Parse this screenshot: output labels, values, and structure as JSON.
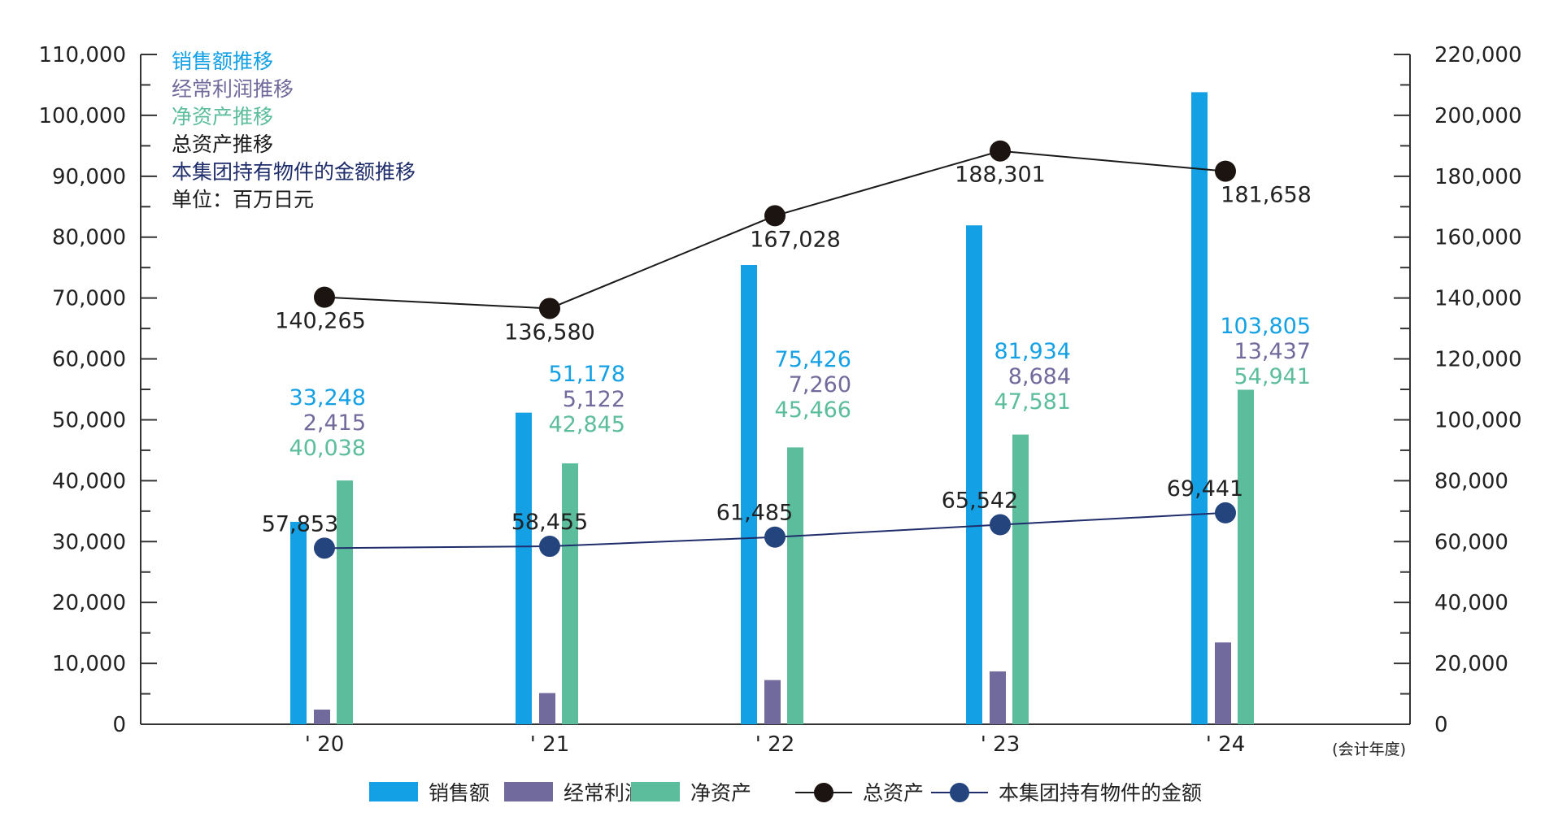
{
  "chart_data": {
    "type": "bar",
    "categories": [
      "' 20",
      "' 21",
      "' 22",
      "' 23",
      "' 24"
    ],
    "x_unit": "(会计年度)",
    "y_left": {
      "range": [
        0,
        110000
      ],
      "ticks": [
        "0",
        "10,000",
        "20,000",
        "30,000",
        "40,000",
        "50,000",
        "60,000",
        "70,000",
        "80,000",
        "90,000",
        "100,000",
        "110,000"
      ]
    },
    "y_right": {
      "range": [
        0,
        220000
      ],
      "ticks": [
        "0",
        "20,000",
        "40,000",
        "60,000",
        "80,000",
        "100,000",
        "120,000",
        "140,000",
        "160,000",
        "180,000",
        "200,000",
        "220,000"
      ]
    },
    "bar_series": [
      {
        "name": "销售额",
        "color": "#13a0e4",
        "values": [
          33248,
          51178,
          75426,
          81934,
          103805
        ],
        "labels": [
          "33,248",
          "51,178",
          "75,426",
          "81,934",
          "103,805"
        ]
      },
      {
        "name": "经常利润",
        "color": "#716a9c",
        "values": [
          2415,
          5122,
          7260,
          8684,
          13437
        ],
        "labels": [
          "2,415",
          "5,122",
          "7,260",
          "8,684",
          "13,437"
        ]
      },
      {
        "name": "净资产",
        "color": "#5cbd9d",
        "values": [
          40038,
          42845,
          45466,
          47581,
          54941
        ],
        "labels": [
          "40,038",
          "42,845",
          "45,466",
          "47,581",
          "54,941"
        ]
      }
    ],
    "line_series": [
      {
        "name": "总资产",
        "axis": "right",
        "line_color": "#1a1a1a",
        "marker_color": "#1c1410",
        "values": [
          140265,
          136580,
          167028,
          188301,
          181658
        ],
        "labels": [
          "140,265",
          "136,580",
          "167,028",
          "188,301",
          "181,658"
        ],
        "label_color": "#222222"
      },
      {
        "name": "本集团持有物件的金额",
        "axis": "right",
        "line_color": "#1f2d6b",
        "marker_color": "#24447e",
        "values": [
          57853,
          58455,
          61485,
          65542,
          69441
        ],
        "labels": [
          "57,853",
          "58,455",
          "61,485",
          "65,542",
          "69,441"
        ],
        "label_color": "#24447e"
      }
    ],
    "notes": [
      {
        "text": "销售额推移",
        "color": "#13a0e4"
      },
      {
        "text": "经常利润推移",
        "color": "#716a9c"
      },
      {
        "text": "净资产推移",
        "color": "#5cbd9d"
      },
      {
        "text": "总资产推移",
        "color": "#1a1a1a"
      },
      {
        "text": "本集团持有物件的金额推移",
        "color": "#1f2d6b"
      },
      {
        "text": "单位：百万日元",
        "color": "#1a1a1a"
      }
    ],
    "legend": [
      "销售额",
      "经常利润",
      "净资产",
      "总资产",
      "本集团持有物件的金额"
    ],
    "legend_position": "bottom"
  }
}
